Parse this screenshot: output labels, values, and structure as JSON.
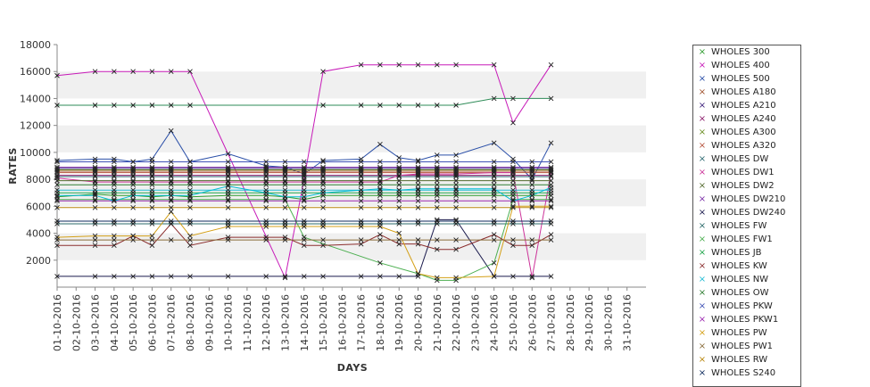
{
  "chart_data": {
    "type": "line",
    "xlabel": "DAYS",
    "ylabel": "RATES",
    "ylim": [
      0,
      18000
    ],
    "yticks": [
      2000,
      4000,
      6000,
      8000,
      10000,
      12000,
      14000,
      16000,
      18000
    ],
    "categories": [
      "01-10-2016",
      "02-10-2016",
      "03-10-2016",
      "04-10-2016",
      "05-10-2016",
      "06-10-2016",
      "07-10-2016",
      "08-10-2016",
      "09-10-2016",
      "10-10-2016",
      "11-10-2016",
      "12-10-2016",
      "13-10-2016",
      "14-10-2016",
      "15-10-2016",
      "16-10-2016",
      "17-10-2016",
      "18-10-2016",
      "19-10-2016",
      "20-10-2016",
      "21-10-2016",
      "22-10-2016",
      "23-10-2016",
      "24-10-2016",
      "25-10-2016",
      "26-10-2016",
      "27-10-2016",
      "28-10-2016",
      "29-10-2016",
      "30-10-2016",
      "31-10-2016"
    ],
    "grid": "alternating horizontal bands",
    "legend_position": "right",
    "series": [
      {
        "name": "WHOLES 300",
        "color": "#2e9c2e",
        "values": [
          6700,
          null,
          6900,
          6800,
          6800,
          6700,
          6800,
          6700,
          null,
          6800,
          null,
          6800,
          6700,
          6500,
          6800,
          null,
          6800,
          6800,
          6800,
          6800,
          6800,
          6800,
          null,
          6800,
          6800,
          6800,
          6800,
          null,
          null,
          null,
          null
        ]
      },
      {
        "name": "WHOLES 400",
        "color": "#c71ab8",
        "values": [
          15700,
          null,
          16000,
          16000,
          16000,
          16000,
          16000,
          16000,
          null,
          null,
          null,
          null,
          700,
          8000,
          16000,
          null,
          16500,
          16500,
          16500,
          16500,
          16500,
          16500,
          null,
          16500,
          12200,
          null,
          16500,
          null,
          null,
          null,
          null
        ]
      },
      {
        "name": "WHOLES 500",
        "color": "#2a4fa8",
        "values": [
          9400,
          null,
          9500,
          9500,
          9300,
          9500,
          11600,
          9300,
          null,
          9900,
          null,
          9000,
          8900,
          8400,
          9400,
          null,
          9500,
          10600,
          9600,
          9400,
          9800,
          9800,
          null,
          10700,
          9500,
          8000,
          10700,
          null,
          null,
          null,
          null
        ]
      },
      {
        "name": "WHOLES A180",
        "color": "#a0522d",
        "values": [
          8600,
          null,
          8600,
          8600,
          8600,
          8600,
          8600,
          8600,
          null,
          8600,
          null,
          8600,
          8600,
          8600,
          8600,
          null,
          8600,
          8600,
          8600,
          8600,
          8600,
          8600,
          null,
          8600,
          8600,
          8600,
          8600,
          null,
          null,
          null,
          null
        ]
      },
      {
        "name": "WHOLES A210",
        "color": "#3a1f7a",
        "values": [
          8800,
          null,
          8800,
          8800,
          8800,
          8800,
          8800,
          8800,
          null,
          8800,
          null,
          8800,
          8800,
          8800,
          8800,
          null,
          8800,
          8800,
          8800,
          8800,
          8800,
          8800,
          null,
          8800,
          8800,
          8800,
          8800,
          null,
          null,
          null,
          null
        ]
      },
      {
        "name": "WHOLES A240",
        "color": "#8b1a6b",
        "values": [
          8300,
          null,
          8300,
          8300,
          8300,
          8300,
          8300,
          8300,
          null,
          8300,
          null,
          8300,
          8300,
          8300,
          8300,
          null,
          8300,
          8300,
          8300,
          8300,
          8300,
          8300,
          null,
          8300,
          8300,
          8300,
          8300,
          null,
          null,
          null,
          null
        ]
      },
      {
        "name": "WHOLES A300",
        "color": "#6b8e23",
        "values": [
          8700,
          null,
          8700,
          8700,
          8700,
          8700,
          8700,
          8700,
          null,
          8700,
          null,
          8700,
          8700,
          8700,
          8700,
          null,
          8700,
          8700,
          8700,
          8700,
          8700,
          8700,
          null,
          8700,
          8700,
          8700,
          8700,
          null,
          null,
          null,
          null
        ]
      },
      {
        "name": "WHOLES A320",
        "color": "#b5523b",
        "values": [
          8500,
          null,
          8500,
          8500,
          8500,
          8500,
          8500,
          8500,
          null,
          8500,
          null,
          8500,
          8500,
          8500,
          8500,
          null,
          8500,
          8500,
          8500,
          8500,
          8500,
          8500,
          null,
          8500,
          8500,
          8500,
          8500,
          null,
          null,
          null,
          null
        ]
      },
      {
        "name": "WHOLES DW",
        "color": "#2f6b73",
        "values": [
          8200,
          null,
          8200,
          8200,
          8200,
          8200,
          8200,
          8200,
          null,
          8200,
          null,
          8200,
          8200,
          8200,
          8200,
          null,
          8200,
          8200,
          8200,
          8200,
          8200,
          8200,
          null,
          8200,
          8200,
          8200,
          8200,
          null,
          null,
          null,
          null
        ]
      },
      {
        "name": "WHOLES DW1",
        "color": "#cc3399",
        "values": [
          8100,
          null,
          7800,
          7800,
          7800,
          7800,
          7800,
          7800,
          null,
          7800,
          null,
          7800,
          7800,
          7800,
          7800,
          null,
          7800,
          7800,
          8300,
          8400,
          8400,
          8400,
          null,
          8500,
          8500,
          700,
          8500,
          null,
          null,
          null,
          null
        ]
      },
      {
        "name": "WHOLES DW2",
        "color": "#556b2f",
        "values": [
          7900,
          null,
          7900,
          7900,
          7900,
          7900,
          7900,
          7900,
          null,
          7900,
          null,
          7900,
          7900,
          7900,
          7900,
          null,
          7900,
          7900,
          7900,
          7900,
          7900,
          7900,
          null,
          7900,
          7900,
          7900,
          7900,
          null,
          null,
          null,
          null
        ]
      },
      {
        "name": "WHOLES DW210",
        "color": "#7b2fa8",
        "values": [
          8900,
          null,
          8900,
          8900,
          8900,
          8900,
          8900,
          8900,
          null,
          8900,
          null,
          8900,
          8900,
          8900,
          8900,
          null,
          8900,
          8900,
          8900,
          8900,
          8900,
          8900,
          null,
          8900,
          8900,
          8900,
          8900,
          null,
          null,
          null,
          null
        ]
      },
      {
        "name": "WHOLES DW240",
        "color": "#1a1a4d",
        "values": [
          800,
          null,
          800,
          800,
          800,
          800,
          800,
          800,
          null,
          800,
          null,
          800,
          800,
          800,
          800,
          null,
          800,
          800,
          800,
          800,
          5000,
          5000,
          null,
          800,
          800,
          800,
          800,
          null,
          null,
          null,
          null
        ]
      },
      {
        "name": "WHOLES FW",
        "color": "#2b6a6a",
        "values": [
          4700,
          null,
          4700,
          4700,
          4700,
          4700,
          4700,
          4700,
          null,
          4700,
          null,
          4700,
          4700,
          4700,
          4700,
          null,
          4700,
          4700,
          4700,
          4700,
          4700,
          4700,
          null,
          4700,
          4700,
          4700,
          4700,
          null,
          null,
          null,
          null
        ]
      },
      {
        "name": "WHOLES FW1",
        "color": "#4caf50",
        "values": [
          6500,
          null,
          6500,
          6500,
          6500,
          6500,
          6500,
          6500,
          null,
          6500,
          null,
          6500,
          6500,
          3700,
          null,
          null,
          null,
          1800,
          null,
          1000,
          500,
          500,
          null,
          1800,
          6500,
          6500,
          6500,
          null,
          null,
          null,
          null
        ]
      },
      {
        "name": "WHOLES JB",
        "color": "#1fa54a",
        "values": [
          7000,
          null,
          7000,
          7000,
          7000,
          7000,
          7000,
          7000,
          null,
          7000,
          null,
          7000,
          7000,
          7000,
          7000,
          null,
          7000,
          7000,
          7000,
          7000,
          7000,
          7000,
          null,
          7000,
          7000,
          7000,
          7000,
          null,
          null,
          null,
          null
        ]
      },
      {
        "name": "WHOLES KW",
        "color": "#8b2e2e",
        "values": [
          3100,
          null,
          3100,
          3100,
          3800,
          3100,
          4700,
          3100,
          null,
          3700,
          null,
          3700,
          3700,
          3100,
          3100,
          null,
          3200,
          3900,
          3200,
          3200,
          2800,
          2800,
          null,
          3900,
          3100,
          3100,
          3900,
          null,
          null,
          null,
          null
        ]
      },
      {
        "name": "WHOLES NW",
        "color": "#22bcd4",
        "values": [
          7200,
          null,
          7200,
          7200,
          7200,
          7200,
          7200,
          7200,
          null,
          7200,
          null,
          7200,
          7200,
          7200,
          7200,
          null,
          7200,
          7200,
          7200,
          7200,
          7200,
          7200,
          null,
          7200,
          7200,
          7200,
          7200,
          null,
          null,
          null,
          null
        ]
      },
      {
        "name": "WHOLES OW",
        "color": "#2e7d32",
        "values": [
          7600,
          null,
          7600,
          7600,
          7600,
          7600,
          7600,
          7600,
          null,
          7600,
          null,
          7600,
          7600,
          7600,
          7600,
          null,
          7600,
          7600,
          7600,
          7600,
          7600,
          7600,
          null,
          7600,
          7600,
          7600,
          7600,
          null,
          null,
          null,
          null
        ]
      },
      {
        "name": "WHOLES PKW",
        "color": "#3f51b5",
        "values": [
          9300,
          null,
          9300,
          9300,
          9300,
          9300,
          9300,
          9300,
          null,
          9300,
          null,
          9300,
          9300,
          9300,
          9300,
          null,
          9300,
          9300,
          9300,
          9300,
          9300,
          9300,
          null,
          9300,
          9300,
          9300,
          9300,
          null,
          null,
          null,
          null
        ]
      },
      {
        "name": "WHOLES PKW1",
        "color": "#9c27b0",
        "values": [
          6400,
          null,
          6400,
          6400,
          6400,
          6400,
          6400,
          6400,
          null,
          6400,
          null,
          6400,
          6400,
          6400,
          6400,
          null,
          6400,
          6400,
          6400,
          6400,
          6400,
          6400,
          null,
          6400,
          6400,
          6400,
          6400,
          null,
          null,
          null,
          null
        ]
      },
      {
        "name": "WHOLES PW",
        "color": "#d4a017",
        "values": [
          3700,
          null,
          3800,
          3800,
          3800,
          3800,
          5600,
          3800,
          null,
          4500,
          null,
          4500,
          4500,
          4500,
          4500,
          null,
          4500,
          4500,
          4000,
          1000,
          700,
          700,
          null,
          800,
          6000,
          6000,
          6000,
          null,
          null,
          null,
          null
        ]
      },
      {
        "name": "WHOLES PW1",
        "color": "#8a6d3b",
        "values": [
          3500,
          null,
          3500,
          3500,
          3500,
          3500,
          3500,
          3500,
          null,
          3500,
          null,
          3500,
          3500,
          3500,
          3500,
          null,
          3500,
          3500,
          3500,
          3500,
          3500,
          3500,
          null,
          3500,
          3500,
          3500,
          3500,
          null,
          null,
          null,
          null
        ]
      },
      {
        "name": "WHOLES RW",
        "color": "#b8860b",
        "values": [
          5900,
          null,
          5900,
          5900,
          5900,
          5900,
          5900,
          5900,
          null,
          5900,
          null,
          5900,
          5900,
          5900,
          5900,
          null,
          5900,
          5900,
          5900,
          5900,
          5900,
          5900,
          null,
          5900,
          5900,
          5900,
          5900,
          null,
          null,
          null,
          null
        ]
      },
      {
        "name": "WHOLES S240",
        "color": "#0d2a5c",
        "values": [
          4900,
          null,
          4900,
          4900,
          4900,
          4900,
          4900,
          4900,
          null,
          4900,
          null,
          4900,
          4900,
          4900,
          4900,
          null,
          4900,
          4900,
          4900,
          4900,
          4900,
          4900,
          null,
          4900,
          4900,
          4900,
          4900,
          null,
          null,
          null,
          null
        ]
      },
      {
        "name": "",
        "color": "#2e8b57",
        "values": [
          13500,
          null,
          13500,
          13500,
          13500,
          13500,
          13500,
          13500,
          null,
          null,
          null,
          null,
          null,
          null,
          13500,
          null,
          13500,
          13500,
          13500,
          13500,
          13500,
          13500,
          null,
          14000,
          14000,
          null,
          14000,
          null,
          null,
          null,
          null
        ]
      },
      {
        "name": "",
        "color": "#00bcd4",
        "values": [
          6800,
          null,
          6800,
          6400,
          6800,
          6800,
          6800,
          6800,
          null,
          7500,
          null,
          7000,
          6700,
          6700,
          7000,
          null,
          7200,
          7300,
          7200,
          7300,
          7300,
          7300,
          null,
          7300,
          6400,
          6800,
          7400,
          null,
          null,
          null,
          null
        ]
      }
    ]
  }
}
